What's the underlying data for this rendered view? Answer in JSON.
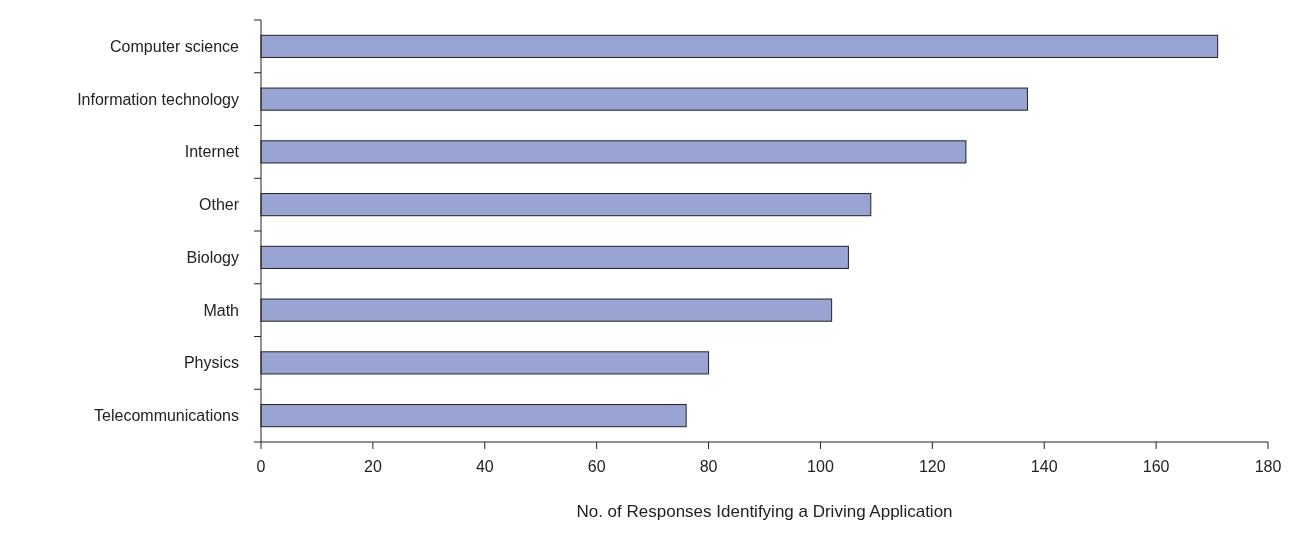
{
  "chart_data": {
    "type": "bar",
    "orientation": "horizontal",
    "xlabel": "No. of Responses Identifying a Driving Application",
    "categories": [
      "Computer science",
      "Information technology",
      "Internet",
      "Other",
      "Biology",
      "Math",
      "Physics",
      "Telecommunications"
    ],
    "values": [
      171,
      137,
      126,
      109,
      105,
      102,
      80,
      76
    ],
    "color": "#99a4d3",
    "xlim": [
      0,
      180
    ],
    "xticks": [
      0,
      20,
      40,
      60,
      80,
      100,
      120,
      140,
      160,
      180
    ],
    "grid": false
  }
}
